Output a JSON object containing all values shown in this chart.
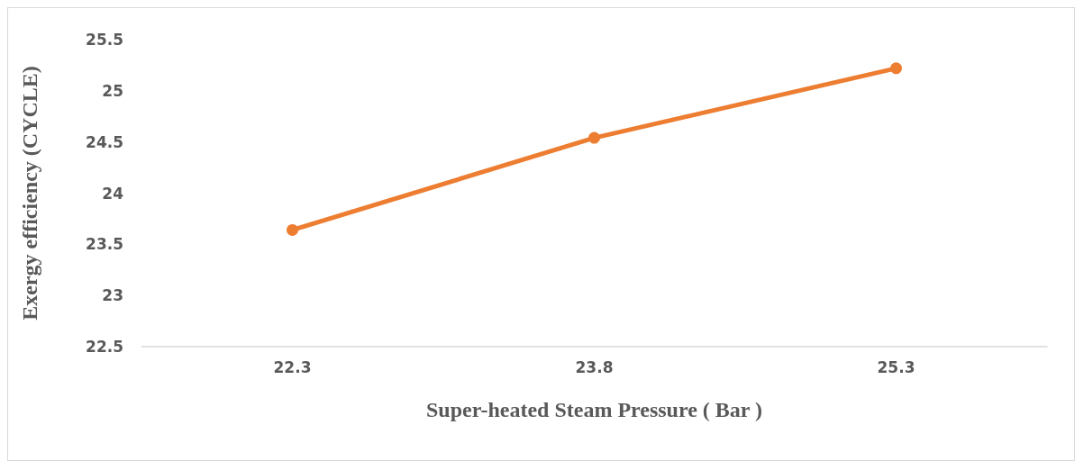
{
  "chart_data": {
    "type": "line",
    "xlabel": "Super-heated Steam Pressure ( Bar )",
    "ylabel": "Exergy efficiency (CYCLE)",
    "categories": [
      "22.3",
      "23.8",
      "25.3"
    ],
    "series": [
      {
        "color": "#ed7d31",
        "values": [
          23.64,
          24.54,
          25.22
        ]
      }
    ],
    "ylim": [
      22.5,
      25.5
    ],
    "yticks": [
      22.5,
      23,
      23.5,
      24,
      24.5,
      25,
      25.5
    ],
    "grid": false,
    "marker": "circle",
    "line_style": "solid"
  }
}
